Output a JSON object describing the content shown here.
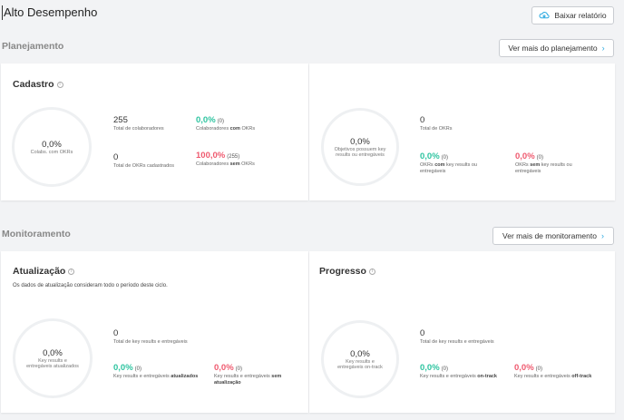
{
  "page": {
    "title": "Alto Desempenho",
    "download_label": "Baixar relatório"
  },
  "planning": {
    "section_title": "Planejamento",
    "more_label": "Ver mais do planejamento",
    "registration": {
      "title": "Cadastro",
      "donut": {
        "value": "0,0%",
        "label": "Colabs. com OKRs"
      },
      "total_collaborators": {
        "value": "255",
        "label": "Total de colaboradores"
      },
      "collab_with_okrs": {
        "value": "0,0%",
        "count": "(0)",
        "label_pre": "Colaboradores ",
        "label_bold": "com",
        "label_post": " OKRs"
      },
      "total_okrs": {
        "value": "0",
        "label": "Total de OKRs cadastrados"
      },
      "collab_without_okrs": {
        "value": "100,0%",
        "count": "(255)",
        "label_pre": "Colaboradores ",
        "label_bold": "sem",
        "label_post": " OKRs"
      }
    },
    "objectives": {
      "donut": {
        "value": "0,0%",
        "label": "Objetivos possuem key results ou entregáveis"
      },
      "total_okrs": {
        "value": "0",
        "label": "Total de OKRs"
      },
      "okrs_with_kr": {
        "value": "0,0%",
        "count": "(0)",
        "label_pre": "OKRs ",
        "label_bold": "com",
        "label_post": " key results ou entregáveis"
      },
      "okrs_without_kr": {
        "value": "0,0%",
        "count": "(0)",
        "label_pre": "OKRs ",
        "label_bold": "sem",
        "label_post": " key results ou entregáveis"
      }
    }
  },
  "monitoring": {
    "section_title": "Monitoramento",
    "more_label": "Ver mais de monitoramento",
    "update": {
      "title": "Atualização",
      "subtitle": "Os dados de atualização consideram todo o período deste ciclo.",
      "donut": {
        "value": "0,0%",
        "label": "Key results e entregáveis atualizados"
      },
      "total": {
        "value": "0",
        "label": "Total de key results e entregáveis"
      },
      "updated": {
        "value": "0,0%",
        "count": "(0)",
        "label_pre": "Key results e entregáveis ",
        "label_bold": "atualizados"
      },
      "not_updated": {
        "value": "0,0%",
        "count": "(0)",
        "label_pre": "Key results e entregáveis ",
        "label_bold": "sem atualização"
      }
    },
    "progress": {
      "title": "Progresso",
      "donut": {
        "value": "0,0%",
        "label": "Key results e entregáveis on-track"
      },
      "total": {
        "value": "0",
        "label": "Total de key results e entregáveis"
      },
      "on_track": {
        "value": "0,0%",
        "count": "(0)",
        "label_pre": "Key results e entregáveis ",
        "label_bold": "on-track"
      },
      "off_track": {
        "value": "0,0%",
        "count": "(0)",
        "label_pre": "Key results e entregáveis ",
        "label_bold": "off-track"
      }
    }
  },
  "colors": {
    "positive": "#2ec4a0",
    "negative": "#ef5a6f",
    "accent": "#2aa9e0"
  },
  "icons": {
    "download": "cloud-download-icon",
    "info": "info-icon",
    "chevron": "chevron-right-icon"
  }
}
